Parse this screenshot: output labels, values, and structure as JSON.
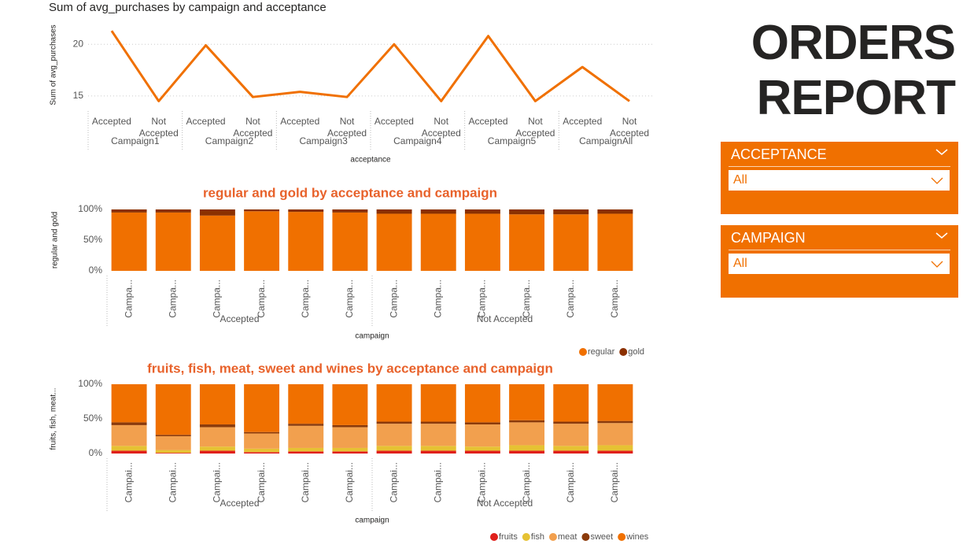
{
  "header": {
    "title": "ORDERS REPORT"
  },
  "slicers": [
    {
      "title": "ACCEPTANCE",
      "value": "All"
    },
    {
      "title": "CAMPAIGN",
      "value": "All"
    }
  ],
  "chart_data": [
    {
      "type": "line",
      "title": "Sum of avg_purchases by campaign and acceptance",
      "y_label": "Sum of avg_purchases",
      "x_label": "acceptance",
      "categories": [
        "Accepted",
        "Not Accepted",
        "Accepted",
        "Not Accepted",
        "Accepted",
        "Not Accepted",
        "Accepted",
        "Not Accepted",
        "Accepted",
        "Not Accepted",
        "Accepted",
        "Not Accepted"
      ],
      "groups": [
        "Campaign1",
        "Campaign2",
        "Campaign3",
        "Campaign4",
        "Campaign5",
        "CampaignAll"
      ],
      "series": [
        {
          "name": "Sum of avg_purchases",
          "color": "#f07000",
          "values": [
            21.3,
            14.5,
            19.9,
            14.9,
            15.4,
            14.9,
            20.0,
            14.5,
            20.8,
            14.5,
            17.8,
            14.5
          ]
        }
      ],
      "ylim": [
        14,
        22
      ],
      "yticks": [
        15,
        20
      ],
      "grid": true
    },
    {
      "type": "bar",
      "stacked": true,
      "title": "regular and gold by acceptance and campaign",
      "y_label": "regular and gold",
      "x_label": "campaign",
      "categories": [
        "Campa...",
        "Campa...",
        "Campa...",
        "Campa...",
        "Campa...",
        "Campa...",
        "Campa...",
        "Campa...",
        "Campa...",
        "Campa...",
        "Campa...",
        "Campa..."
      ],
      "groups": [
        "Accepted",
        "Not Accepted"
      ],
      "series": [
        {
          "name": "regular",
          "color": "#f07000",
          "values": [
            95,
            95,
            90,
            97,
            96,
            95,
            93,
            93,
            93,
            92,
            92,
            93
          ]
        },
        {
          "name": "gold",
          "color": "#8b3000",
          "values": [
            5,
            5,
            10,
            3,
            4,
            5,
            7,
            7,
            7,
            8,
            8,
            7
          ]
        }
      ],
      "ylim": [
        0,
        100
      ],
      "yticks": [
        {
          "value": 0,
          "label": "0%"
        },
        {
          "value": 50,
          "label": "50%"
        },
        {
          "value": 100,
          "label": "100%"
        }
      ],
      "grid": false
    },
    {
      "type": "bar",
      "stacked": true,
      "title": "fruits, fish, meat, sweet and wines by acceptance and campaign",
      "y_label": "fruits, fish, meat...",
      "x_label": "campaign",
      "categories": [
        "Campai...",
        "Campai...",
        "Campai...",
        "Campai...",
        "Campai...",
        "Campai...",
        "Campai...",
        "Campai...",
        "Campai...",
        "Campai...",
        "Campai...",
        "Campai..."
      ],
      "groups": [
        "Accepted",
        "Not Accepted"
      ],
      "series": [
        {
          "name": "fruits",
          "color": "#e0201c",
          "values": [
            4,
            1,
            4,
            2,
            3,
            3,
            4,
            4,
            4,
            4,
            4,
            4
          ]
        },
        {
          "name": "fish",
          "color": "#e6c233",
          "values": [
            7,
            4,
            6,
            5,
            5,
            5,
            7,
            7,
            6,
            8,
            7,
            8
          ]
        },
        {
          "name": "meat",
          "color": "#f2a04e",
          "values": [
            30,
            20,
            28,
            22,
            32,
            30,
            32,
            32,
            32,
            33,
            32,
            32
          ]
        },
        {
          "name": "sweet",
          "color": "#8b3a0a",
          "values": [
            4,
            2,
            4,
            2,
            3,
            3,
            3,
            3,
            3,
            3,
            3,
            3
          ]
        },
        {
          "name": "wines",
          "color": "#f07000",
          "values": [
            55,
            73,
            58,
            69,
            57,
            59,
            54,
            54,
            55,
            52,
            54,
            53
          ]
        }
      ],
      "ylim": [
        0,
        100
      ],
      "yticks": [
        {
          "value": 0,
          "label": "0%"
        },
        {
          "value": 50,
          "label": "50%"
        },
        {
          "value": 100,
          "label": "100%"
        }
      ],
      "grid": false
    }
  ]
}
